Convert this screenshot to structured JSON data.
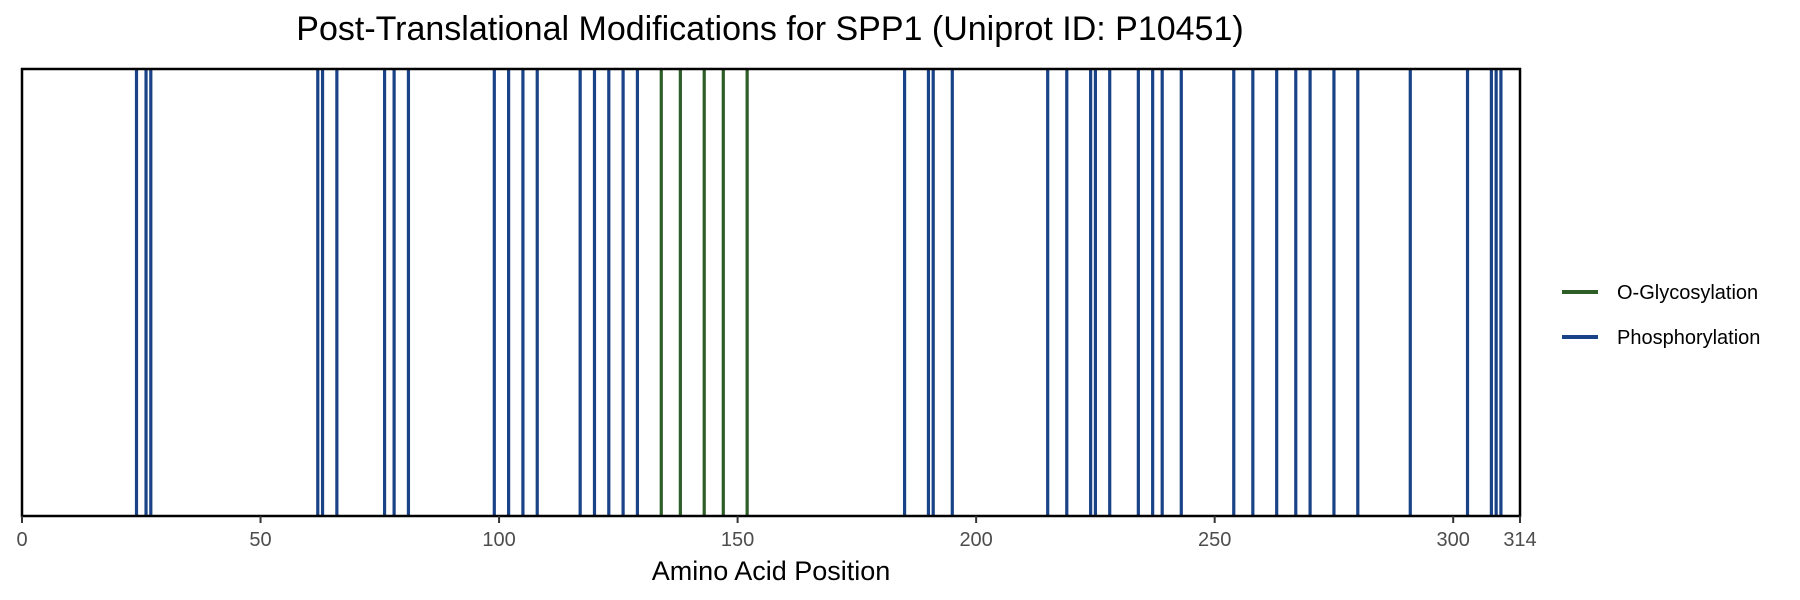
{
  "chart_data": {
    "type": "line",
    "title": "Post-Translational Modifications for SPP1 (Uniprot ID: P10451)",
    "xlabel": "Amino Acid Position",
    "ylabel": "",
    "xlim": [
      0,
      314
    ],
    "x_ticks": [
      0,
      50,
      100,
      150,
      200,
      250,
      300,
      314
    ],
    "x_tick_labels": [
      "0",
      "50",
      "100",
      "150",
      "200",
      "250",
      "300",
      "314"
    ],
    "grid": false,
    "legend_position": "right",
    "series": [
      {
        "name": "O-Glycosylation",
        "color": "#2d5e27",
        "positions": [
          134,
          138,
          143,
          147,
          152
        ]
      },
      {
        "name": "Phosphorylation",
        "color": "#1a4287",
        "positions": [
          24,
          26,
          27,
          62,
          63,
          66,
          76,
          78,
          81,
          99,
          102,
          105,
          108,
          117,
          120,
          123,
          126,
          129,
          185,
          190,
          191,
          195,
          215,
          219,
          224,
          225,
          228,
          234,
          237,
          239,
          243,
          254,
          258,
          263,
          267,
          270,
          275,
          280,
          291,
          303,
          308,
          309,
          310
        ]
      }
    ]
  }
}
